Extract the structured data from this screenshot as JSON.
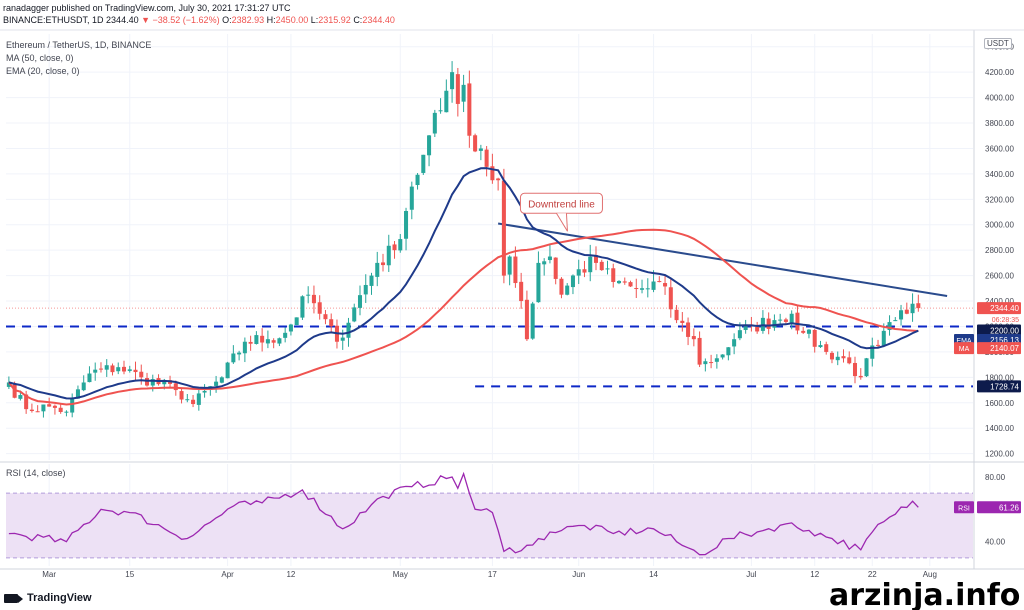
{
  "header": {
    "published": "ranadagger published on TradingView.com, July 30, 2021 17:31:27 UTC",
    "symbol": "BINANCE:ETHUSDT, 1D",
    "last": "2344.40",
    "change": "▼ −38.52 (−1.62%)",
    "o_label": "O:",
    "o": "2382.93",
    "h_label": "H:",
    "h": "2450.00",
    "l_label": "L:",
    "l": "2315.92",
    "c_label": "C:",
    "c": "2344.40"
  },
  "legend": {
    "pair": "Ethereum / TetherUS, 1D, BINANCE",
    "ma": "MA (50, close, 0)",
    "ema": "EMA (20, close, 0)",
    "rsi": "RSI (14, close)"
  },
  "currency_badge": "USDT",
  "brand": "TradingView",
  "watermark": "arzinja.info",
  "colors": {
    "up": "#26a69a",
    "down": "#ef5350",
    "ma": "#ef5350",
    "ema": "#1e3a8a",
    "trendline": "#2a4b8d",
    "support": "#0d28c7",
    "rsi": "#9c27b0",
    "rsi_band": "#ede1f5",
    "axis_text": "#434651"
  },
  "annotation": "Downtrend line",
  "chart_data": [
    {
      "type": "candlestick",
      "title": "Ethereum / TetherUS, 1D, BINANCE",
      "ylabel": "USDT",
      "ylim": [
        1150,
        4500
      ],
      "yticks": [
        1200,
        1400,
        1600,
        1800,
        2000,
        2200,
        2400,
        2600,
        2800,
        3000,
        3200,
        3400,
        3600,
        3800,
        4000,
        4200,
        4400
      ],
      "ytick_labels": [
        "1200.00",
        "1400.00",
        "1600.00",
        "1800.00",
        "2000.00",
        "2200.00",
        "2400.00",
        "2600.00",
        "2800.00",
        "3000.00",
        "3200.00",
        "3400.00",
        "3600.00",
        "3800.00",
        "4000.00",
        "4200.00",
        "4400.00"
      ],
      "x_start": "2021-02-22",
      "x_end": "2021-08-08",
      "xticks": [
        {
          "date": "2021-03-01",
          "label": "Mar"
        },
        {
          "date": "2021-03-15",
          "label": "15"
        },
        {
          "date": "2021-04-01",
          "label": "Apr"
        },
        {
          "date": "2021-04-12",
          "label": "12"
        },
        {
          "date": "2021-05-01",
          "label": "May"
        },
        {
          "date": "2021-05-17",
          "label": "17"
        },
        {
          "date": "2021-06-01",
          "label": "Jun"
        },
        {
          "date": "2021-06-14",
          "label": "14"
        },
        {
          "date": "2021-07-01",
          "label": "Jul"
        },
        {
          "date": "2021-07-12",
          "label": "12"
        },
        {
          "date": "2021-07-22",
          "label": "22"
        },
        {
          "date": "2021-08-01",
          "label": "Aug"
        }
      ],
      "close_anchors": [
        [
          "2021-02-22",
          1760
        ],
        [
          "2021-02-25",
          1550
        ],
        [
          "2021-03-01",
          1570
        ],
        [
          "2021-03-04",
          1530
        ],
        [
          "2021-03-08",
          1830
        ],
        [
          "2021-03-13",
          1880
        ],
        [
          "2021-03-17",
          1800
        ],
        [
          "2021-03-23",
          1700
        ],
        [
          "2021-03-26",
          1590
        ],
        [
          "2021-03-31",
          1800
        ],
        [
          "2021-04-04",
          2080
        ],
        [
          "2021-04-08",
          2100
        ],
        [
          "2021-04-11",
          2150
        ],
        [
          "2021-04-15",
          2450
        ],
        [
          "2021-04-17",
          2300
        ],
        [
          "2021-04-20",
          2080
        ],
        [
          "2021-04-23",
          2350
        ],
        [
          "2021-04-27",
          2700
        ],
        [
          "2021-04-30",
          2800
        ],
        [
          "2021-05-03",
          3300
        ],
        [
          "2021-05-05",
          3550
        ],
        [
          "2021-05-08",
          3900
        ],
        [
          "2021-05-10",
          4200
        ],
        [
          "2021-05-11",
          3950
        ],
        [
          "2021-05-12",
          4100
        ],
        [
          "2021-05-13",
          3700
        ],
        [
          "2021-05-15",
          3600
        ],
        [
          "2021-05-17",
          3350
        ],
        [
          "2021-05-18",
          3350
        ],
        [
          "2021-05-19",
          2600
        ],
        [
          "2021-05-20",
          2750
        ],
        [
          "2021-05-22",
          2400
        ],
        [
          "2021-05-23",
          2100
        ],
        [
          "2021-05-25",
          2700
        ],
        [
          "2021-05-27",
          2750
        ],
        [
          "2021-05-29",
          2450
        ],
        [
          "2021-06-01",
          2650
        ],
        [
          "2021-06-04",
          2700
        ],
        [
          "2021-06-07",
          2550
        ],
        [
          "2021-06-11",
          2500
        ],
        [
          "2021-06-13",
          2500
        ],
        [
          "2021-06-15",
          2550
        ],
        [
          "2021-06-18",
          2250
        ],
        [
          "2021-06-21",
          2100
        ],
        [
          "2021-06-22",
          1900
        ],
        [
          "2021-06-25",
          1950
        ],
        [
          "2021-06-28",
          2100
        ],
        [
          "2021-07-01",
          2200
        ],
        [
          "2021-07-05",
          2250
        ],
        [
          "2021-07-08",
          2300
        ],
        [
          "2021-07-10",
          2150
        ],
        [
          "2021-07-14",
          2000
        ],
        [
          "2021-07-17",
          1950
        ],
        [
          "2021-07-20",
          1800
        ],
        [
          "2021-07-21",
          1950
        ],
        [
          "2021-07-23",
          2050
        ],
        [
          "2021-07-26",
          2250
        ],
        [
          "2021-07-28",
          2300
        ],
        [
          "2021-07-30",
          2344
        ]
      ],
      "last_ohlc": {
        "date": "2021-07-30",
        "open": 2382.93,
        "high": 2450.0,
        "low": 2315.92,
        "close": 2344.4
      },
      "price_lines": [
        {
          "value": 2200.0,
          "label": "2200.00",
          "style": "dashed"
        },
        {
          "value": 1728.74,
          "label": "1728.74",
          "style": "dashed",
          "from": "2021-05-14"
        }
      ],
      "trendline": {
        "start": [
          "2021-05-18",
          3010
        ],
        "end": [
          "2021-08-04",
          2440
        ]
      },
      "annotations": [
        {
          "text": "Downtrend line",
          "date": "2021-05-29",
          "value": 3090
        }
      ],
      "series": [
        {
          "name": "MA",
          "period": 50,
          "last_label": "MA",
          "last_value": "2140.07"
        },
        {
          "name": "EMA",
          "period": 20,
          "last_label": "EMA",
          "last_value": "2156.13"
        }
      ],
      "last_price_label": "2344.40",
      "countdown": "06:28:35"
    },
    {
      "type": "line",
      "title": "RSI (14, close)",
      "ylim": [
        25,
        88
      ],
      "yticks": [
        40,
        80
      ],
      "ytick_labels": [
        "40.00",
        "80.00"
      ],
      "band": [
        30,
        70
      ],
      "last_label": "RSI",
      "last_value": "61.26",
      "values": [
        [
          "2021-02-22",
          45
        ],
        [
          "2021-03-04",
          40
        ],
        [
          "2021-03-10",
          60
        ],
        [
          "2021-03-15",
          58
        ],
        [
          "2021-03-25",
          42
        ],
        [
          "2021-04-02",
          62
        ],
        [
          "2021-04-07",
          64
        ],
        [
          "2021-04-14",
          72
        ],
        [
          "2021-04-21",
          48
        ],
        [
          "2021-04-28",
          68
        ],
        [
          "2021-05-03",
          74
        ],
        [
          "2021-05-10",
          80
        ],
        [
          "2021-05-11",
          73
        ],
        [
          "2021-05-12",
          82
        ],
        [
          "2021-05-14",
          60
        ],
        [
          "2021-05-17",
          58
        ],
        [
          "2021-05-19",
          34
        ],
        [
          "2021-05-24",
          38
        ],
        [
          "2021-05-27",
          46
        ],
        [
          "2021-06-02",
          50
        ],
        [
          "2021-06-07",
          45
        ],
        [
          "2021-06-14",
          48
        ],
        [
          "2021-06-18",
          40
        ],
        [
          "2021-06-22",
          32
        ],
        [
          "2021-06-27",
          42
        ],
        [
          "2021-07-02",
          46
        ],
        [
          "2021-07-07",
          51
        ],
        [
          "2021-07-11",
          47
        ],
        [
          "2021-07-15",
          42
        ],
        [
          "2021-07-20",
          35
        ],
        [
          "2021-07-22",
          46
        ],
        [
          "2021-07-26",
          57
        ],
        [
          "2021-07-29",
          65
        ],
        [
          "2021-07-30",
          61.26
        ]
      ]
    }
  ]
}
